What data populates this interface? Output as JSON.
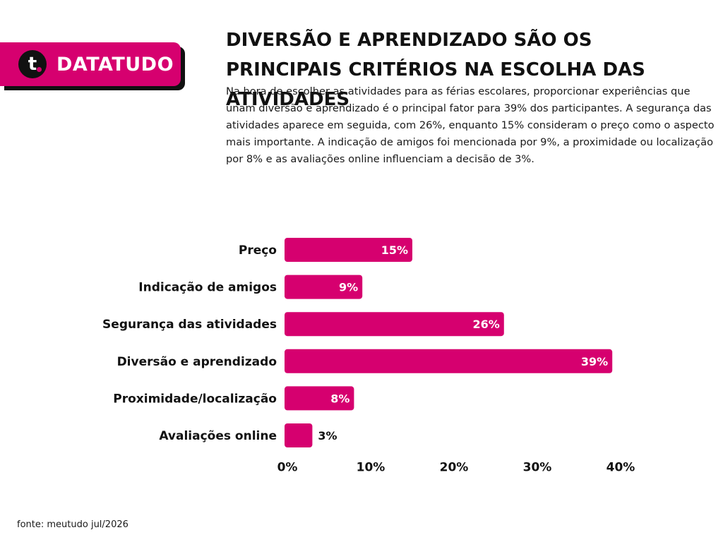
{
  "brand": {
    "name": "DATATUDO",
    "icon_letter": "t",
    "icon": "datatudo-logo-icon",
    "color": "#d6006f"
  },
  "title": "DIVERSÃO E APRENDIZADO SÃO OS PRINCIPAIS CRITÉRIOS NA ESCOLHA DAS ATIVIDADES",
  "description": "Na hora de escolher as atividades para as férias escolares, proporcionar experiências que unam diversão e aprendizado é o principal fator para 39% dos participantes. A segurança das atividades aparece em seguida, com 26%, enquanto 15% consideram o preço como o aspecto mais importante. A indicação de amigos foi mencionada por 9%, a proximidade ou localização por 8% e as avaliações online influenciam a decisão de 3%.",
  "source": "fonte: meutudo jul/2026",
  "chart_data": {
    "type": "bar",
    "orientation": "horizontal",
    "categories": [
      "Preço",
      "Indicação de amigos",
      "Segurança das atividades",
      "Diversão e aprendizado",
      "Proximidade/localização",
      "Avaliações online"
    ],
    "values": [
      15,
      9,
      26,
      39,
      8,
      3
    ],
    "value_labels": [
      "15%",
      "9%",
      "26%",
      "39%",
      "8%",
      "3%"
    ],
    "xlim": [
      0,
      40
    ],
    "ticks": [
      0,
      10,
      20,
      30,
      40
    ],
    "tick_labels": [
      "0%",
      "10%",
      "20%",
      "30%",
      "40%"
    ],
    "bar_color": "#d6006f",
    "grid": false,
    "legend": "none"
  }
}
